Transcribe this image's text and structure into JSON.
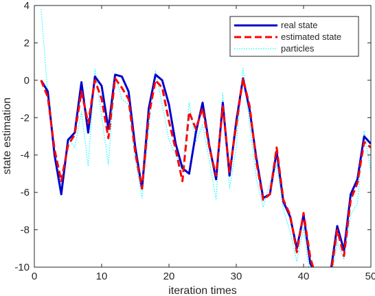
{
  "chart_data": {
    "type": "line",
    "title": "",
    "xlabel": "iteration times",
    "ylabel": "state estimation",
    "xlim": [
      0,
      50
    ],
    "ylim": [
      -10,
      4
    ],
    "xticks": [
      0,
      10,
      20,
      30,
      40,
      50
    ],
    "yticks": [
      4,
      2,
      0,
      -2,
      -4,
      -6,
      -8,
      -10
    ],
    "grid": false,
    "legend": "top-right",
    "x": [
      1,
      2,
      3,
      4,
      5,
      6,
      7,
      8,
      9,
      10,
      11,
      12,
      13,
      14,
      15,
      16,
      17,
      18,
      19,
      20,
      21,
      22,
      23,
      24,
      25,
      26,
      27,
      28,
      29,
      30,
      31,
      32,
      33,
      34,
      35,
      36,
      37,
      38,
      39,
      40,
      41,
      42,
      43,
      44,
      45,
      46,
      47,
      48,
      49,
      50
    ],
    "series": [
      {
        "name": "real state",
        "color": "#0000cc",
        "style": "solid",
        "values": [
          0,
          -0.6,
          -4,
          -6.1,
          -3.2,
          -2.8,
          -0.1,
          -2.8,
          0.2,
          -0.3,
          -2.6,
          0.3,
          0.2,
          -0.6,
          -3.6,
          -5.8,
          -1.5,
          0.3,
          0,
          -1.3,
          -3.4,
          -4.7,
          -5,
          -2.8,
          -1.2,
          -3.5,
          -5.3,
          -1.2,
          -5.1,
          -2.2,
          0.1,
          -1.6,
          -4.2,
          -6.3,
          -6.1,
          -3.8,
          -6.5,
          -7.3,
          -9,
          -7.2,
          -9.8,
          -10.5,
          -11.2,
          -10.3,
          -7.8,
          -9.1,
          -6.1,
          -5.3,
          -3,
          -3.4
        ]
      },
      {
        "name": "estimated state",
        "color": "#ff0000",
        "style": "dashed",
        "values": [
          0,
          -0.9,
          -3.7,
          -5.4,
          -3.5,
          -2.9,
          -0.6,
          -2.3,
          0,
          -1,
          -3.1,
          0.1,
          -0.4,
          -1,
          -3.9,
          -5.8,
          -1.9,
          0,
          -0.4,
          -2.2,
          -3.7,
          -5.4,
          -1.7,
          -2.6,
          -1.5,
          -3.6,
          -5.1,
          -1.4,
          -4.9,
          -2.4,
          0.1,
          -1.4,
          -4.4,
          -6.4,
          -6.1,
          -3.6,
          -6.4,
          -7.2,
          -9.2,
          -7.1,
          -9.5,
          -10.7,
          -11,
          -10.5,
          -8,
          -9.4,
          -6.4,
          -5.5,
          -3.3,
          -3.6
        ]
      },
      {
        "name": "particles",
        "color": "#00ffff",
        "style": "dotted",
        "values": [
          3.8,
          -0.7,
          -3.6,
          -5.6,
          -3.1,
          -3.6,
          -1.7,
          -4.6,
          0.6,
          -1.9,
          -4.5,
          0.3,
          -1,
          -1.3,
          -4.2,
          -6.3,
          -2.6,
          0.5,
          -1.3,
          -3.2,
          -4,
          -4.9,
          -1.2,
          -3.3,
          -2.4,
          -4.3,
          -6.4,
          -0.7,
          -5.8,
          -3.6,
          0.7,
          -2.4,
          -5.3,
          -6.8,
          -5.5,
          -4.5,
          -6.9,
          -8.1,
          -9.7,
          -7.9,
          -10.6,
          -11.3,
          -11.5,
          -10.8,
          -8.7,
          -9.6,
          -7.2,
          -6.6,
          -2.7,
          -4.9
        ]
      }
    ]
  }
}
